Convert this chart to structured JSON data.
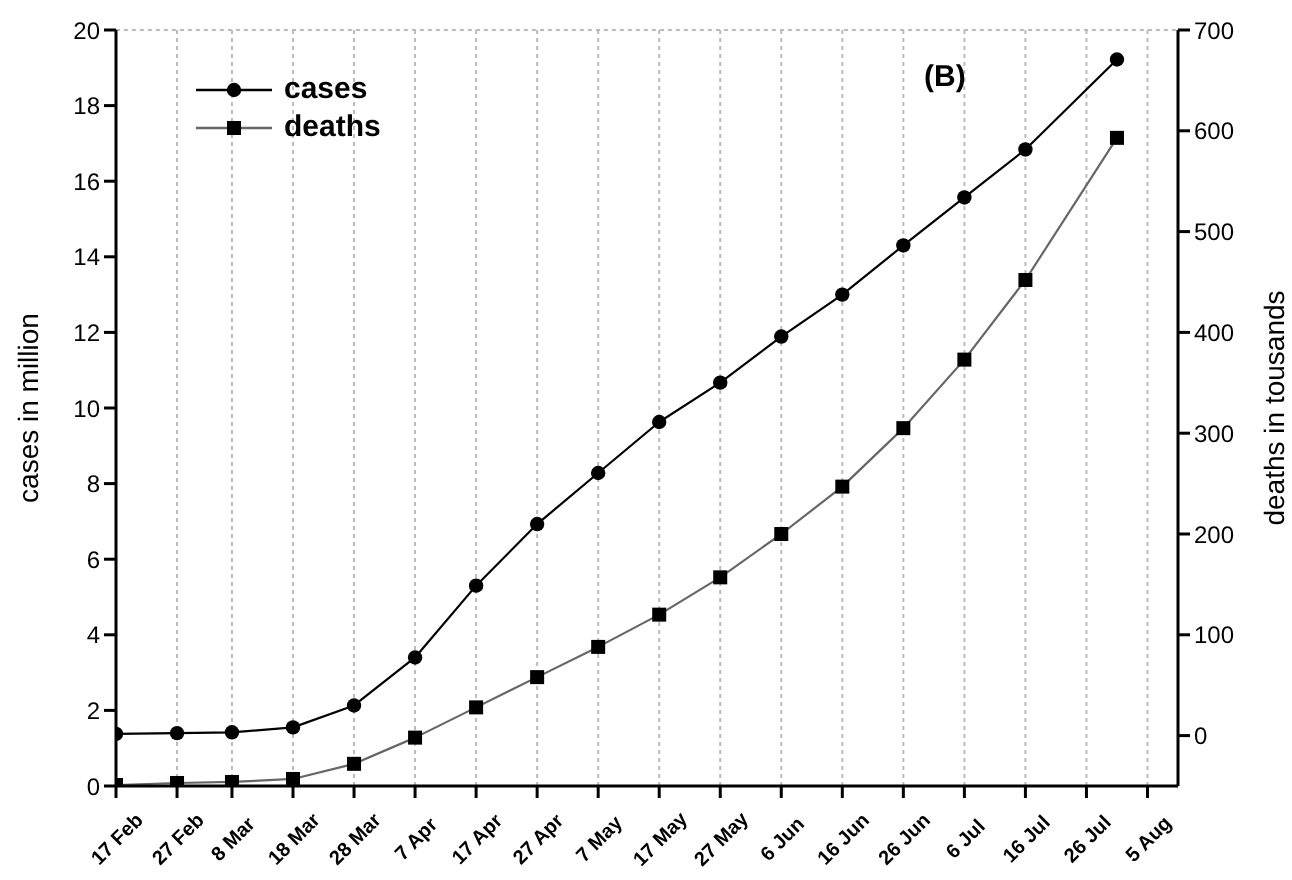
{
  "chart_data": {
    "type": "line",
    "xlabel": null,
    "ylabel": "cases in million",
    "y2label": "deaths in tousands",
    "annotations": [
      "(B)"
    ],
    "x": [
      "--02-17",
      "--02-27",
      "--03-08",
      "--03-18",
      "--03-28",
      "--04-07",
      "--04-17",
      "--04-27",
      "--05-07",
      "--05-17",
      "--05-27",
      "--06-06",
      "--06-16",
      "--06-26",
      "--07-06",
      "--07-16",
      "--07-31"
    ],
    "series": [
      {
        "name": "cases",
        "color": "#000000",
        "marker": "circle",
        "values": [
          1.38,
          1.4,
          1.42,
          1.55,
          2.13,
          3.4,
          5.3,
          6.93,
          8.28,
          9.63,
          10.67,
          11.89,
          13.0,
          14.3,
          15.57,
          16.84,
          19.22
        ]
      },
      {
        "name": "deaths",
        "color": "#666666",
        "marker": "square",
        "axis": "y2",
        "values": [
          -49,
          -47,
          -46,
          -43,
          -28,
          -2,
          28,
          58,
          88,
          120,
          157,
          200,
          247,
          305,
          373,
          452,
          593
        ]
      }
    ],
    "xlim": [
      "--02-17",
      "--08-10"
    ],
    "xticks": [
      {
        "value": "--02-17",
        "label": "17 Feb"
      },
      {
        "value": "--02-27",
        "label": "27 Feb"
      },
      {
        "value": "--03-08",
        "label": "8 Mar"
      },
      {
        "value": "--03-18",
        "label": "18 Mar"
      },
      {
        "value": "--03-28",
        "label": "28 Mar"
      },
      {
        "value": "--04-07",
        "label": "7 Apr"
      },
      {
        "value": "--04-17",
        "label": "17 Apr"
      },
      {
        "value": "--04-27",
        "label": "27 Apr"
      },
      {
        "value": "--05-07",
        "label": "7 May"
      },
      {
        "value": "--05-17",
        "label": "17 May"
      },
      {
        "value": "--05-27",
        "label": "27 May"
      },
      {
        "value": "--06-06",
        "label": "6 Jun"
      },
      {
        "value": "--06-16",
        "label": "16 Jun"
      },
      {
        "value": "--06-26",
        "label": "26 Jun"
      },
      {
        "value": "--07-06",
        "label": "6 Jul"
      },
      {
        "value": "--07-16",
        "label": "16 Jul"
      },
      {
        "value": "--07-26",
        "label": "26 Jul"
      },
      {
        "value": "--08-05",
        "label": "5 Aug"
      }
    ],
    "ylim": [
      0,
      20
    ],
    "yticks": [
      0,
      2,
      4,
      6,
      8,
      10,
      12,
      14,
      16,
      18,
      20
    ],
    "y2lim": [
      -50,
      700
    ],
    "y2ticks": [
      0,
      100,
      200,
      300,
      400,
      500,
      600,
      700
    ],
    "grid": true,
    "legend": "top left",
    "line_style": "solid"
  }
}
